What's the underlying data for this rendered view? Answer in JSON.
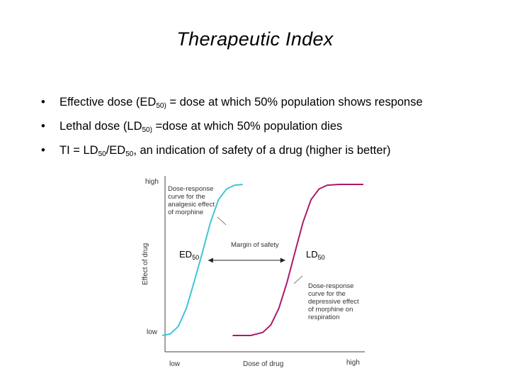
{
  "slide": {
    "title": "Therapeutic Index"
  },
  "bullets": [
    {
      "glyph": "•",
      "parts": [
        {
          "t": "Effective dose (ED"
        },
        {
          "t": "50)",
          "sub": true
        },
        {
          "t": " = dose at which 50% population shows response"
        }
      ]
    },
    {
      "glyph": "•",
      "parts": [
        {
          "t": "Lethal dose (LD"
        },
        {
          "t": "50)",
          "sub": true
        },
        {
          "t": " =dose at which 50% population dies"
        }
      ]
    },
    {
      "glyph": "•",
      "parts": [
        {
          "t": "TI = LD"
        },
        {
          "t": "50",
          "sub": true
        },
        {
          "t": "/ED"
        },
        {
          "t": "50",
          "sub": true
        },
        {
          "t": ", an indication of safety of a drug (higher is better)"
        }
      ]
    }
  ],
  "chart_data": {
    "type": "line",
    "ylabel": "Effect of drug",
    "xlabel": "Dose of drug",
    "x_ticks": [
      "low",
      "high"
    ],
    "y_ticks": [
      "low",
      "high"
    ],
    "xlim": [
      0,
      1
    ],
    "ylim": [
      0,
      1
    ],
    "series": [
      {
        "color": "#3ec6d8",
        "x": [
          0.0,
          0.04,
          0.08,
          0.12,
          0.16,
          0.2,
          0.24,
          0.28,
          0.32,
          0.36,
          0.4
        ],
        "y": [
          0.0,
          0.01,
          0.06,
          0.18,
          0.36,
          0.55,
          0.75,
          0.9,
          0.97,
          0.995,
          1.0
        ]
      },
      {
        "color": "#b0186a",
        "x": [
          0.35,
          0.44,
          0.5,
          0.54,
          0.58,
          0.62,
          0.66,
          0.7,
          0.74,
          0.78,
          0.82,
          0.88,
          1.0
        ],
        "y": [
          0.0,
          0.0,
          0.02,
          0.07,
          0.18,
          0.35,
          0.55,
          0.75,
          0.9,
          0.97,
          0.995,
          1.0,
          1.0
        ]
      }
    ],
    "annotations": {
      "analgesic_lines": [
        "Dose-response",
        "curve for the",
        "analgesic effect",
        "of morphine"
      ],
      "depressive_lines": [
        "Dose-response",
        "curve for the",
        "depressive effect",
        "of morphine on",
        "respiration"
      ],
      "margin": "Margin of safety",
      "ed_main": "ED",
      "ed_sub": "50",
      "ld_main": "LD",
      "ld_sub": "50",
      "ed50_x": 0.2,
      "ld50_x": 0.64
    },
    "grid": false
  }
}
